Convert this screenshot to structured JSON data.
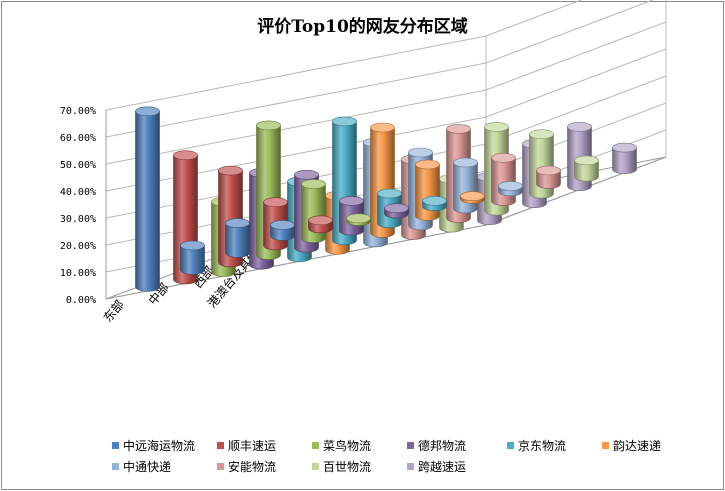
{
  "chart_data": {
    "type": "bar",
    "variant": "3d-cylinder",
    "title": "评价Top10的网友分布区域",
    "categories": [
      "东部",
      "中部",
      "西部",
      "港澳台及其他"
    ],
    "y_tick_labels": [
      "0.00%",
      "10.00%",
      "20.00%",
      "30.00%",
      "40.00%",
      "50.00%",
      "60.00%",
      "70.00%"
    ],
    "ylim": [
      0,
      70
    ],
    "y_unit": "%",
    "grid": true,
    "legend_position": "bottom",
    "series": [
      {
        "name": "中远海运物流",
        "color": "#4F81BD",
        "values": [
          65,
          9,
          11,
          4
        ]
      },
      {
        "name": "顺丰速运",
        "color": "#C0504D",
        "values": [
          46,
          34,
          16,
          3
        ]
      },
      {
        "name": "菜鸟物流",
        "color": "#9BBB59",
        "values": [
          26,
          48,
          20,
          1
        ]
      },
      {
        "name": "德邦物流",
        "color": "#8064A2",
        "values": [
          34,
          27,
          11,
          2
        ]
      },
      {
        "name": "京东物流",
        "color": "#4BACC6",
        "values": [
          28,
          44,
          11,
          2
        ]
      },
      {
        "name": "韵达速递",
        "color": "#F79646",
        "values": [
          20,
          39,
          19,
          1
        ]
      },
      {
        "name": "中通快递",
        "color": "#95B3D7",
        "values": [
          37,
          27,
          17,
          2
        ]
      },
      {
        "name": "安能物流",
        "color": "#D99694",
        "values": [
          28,
          33,
          16,
          5
        ]
      },
      {
        "name": "百世物流",
        "color": "#C3D69B",
        "values": [
          18,
          31,
          22,
          6
        ]
      },
      {
        "name": "跨越速运",
        "color": "#B2A2C7",
        "values": [
          16,
          22,
          22,
          8
        ]
      }
    ]
  }
}
